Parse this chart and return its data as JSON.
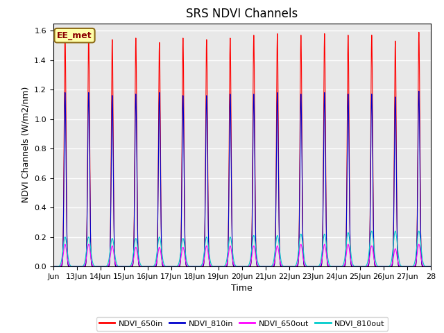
{
  "title": "SRS NDVI Channels",
  "ylabel": "NDVI Channels (W/m2/nm)",
  "xlabel": "Time",
  "annotation": "EE_met",
  "xlim_start": 0,
  "xlim_end": 16,
  "ylim": [
    0.0,
    1.65
  ],
  "yticks": [
    0.0,
    0.2,
    0.4,
    0.6,
    0.8,
    1.0,
    1.2,
    1.4,
    1.6
  ],
  "xtick_labels": [
    "Jun",
    "13Jun",
    "14Jun",
    "15Jun",
    "16Jun",
    "17Jun",
    "18Jun",
    "19Jun",
    "20Jun",
    "21Jun",
    "22Jun",
    "23Jun",
    "24Jun",
    "25Jun",
    "26Jun",
    "27Jun",
    "28"
  ],
  "colors": {
    "NDVI_650in": "#ff0000",
    "NDVI_810in": "#0000cc",
    "NDVI_650out": "#ff00ff",
    "NDVI_810out": "#00cccc"
  },
  "legend_labels": [
    "NDVI_650in",
    "NDVI_810in",
    "NDVI_650out",
    "NDVI_810out"
  ],
  "peak_650in": [
    1.58,
    1.57,
    1.54,
    1.55,
    1.52,
    1.55,
    1.54,
    1.55,
    1.57,
    1.58,
    1.57,
    1.58,
    1.57,
    1.57,
    1.53,
    1.59
  ],
  "peak_810in": [
    1.18,
    1.18,
    1.16,
    1.17,
    1.18,
    1.16,
    1.16,
    1.17,
    1.17,
    1.18,
    1.17,
    1.18,
    1.17,
    1.17,
    1.15,
    1.19
  ],
  "peak_650out": [
    0.15,
    0.15,
    0.14,
    0.13,
    0.13,
    0.13,
    0.14,
    0.14,
    0.14,
    0.14,
    0.15,
    0.15,
    0.15,
    0.14,
    0.12,
    0.15
  ],
  "peak_810out": [
    0.2,
    0.2,
    0.19,
    0.19,
    0.2,
    0.19,
    0.2,
    0.2,
    0.21,
    0.21,
    0.22,
    0.22,
    0.23,
    0.24,
    0.24,
    0.24
  ],
  "background_color": "#e8e8e8",
  "fig_background": "#ffffff",
  "grid_color": "#ffffff",
  "title_fontsize": 12,
  "axis_fontsize": 9,
  "tick_fontsize": 8
}
